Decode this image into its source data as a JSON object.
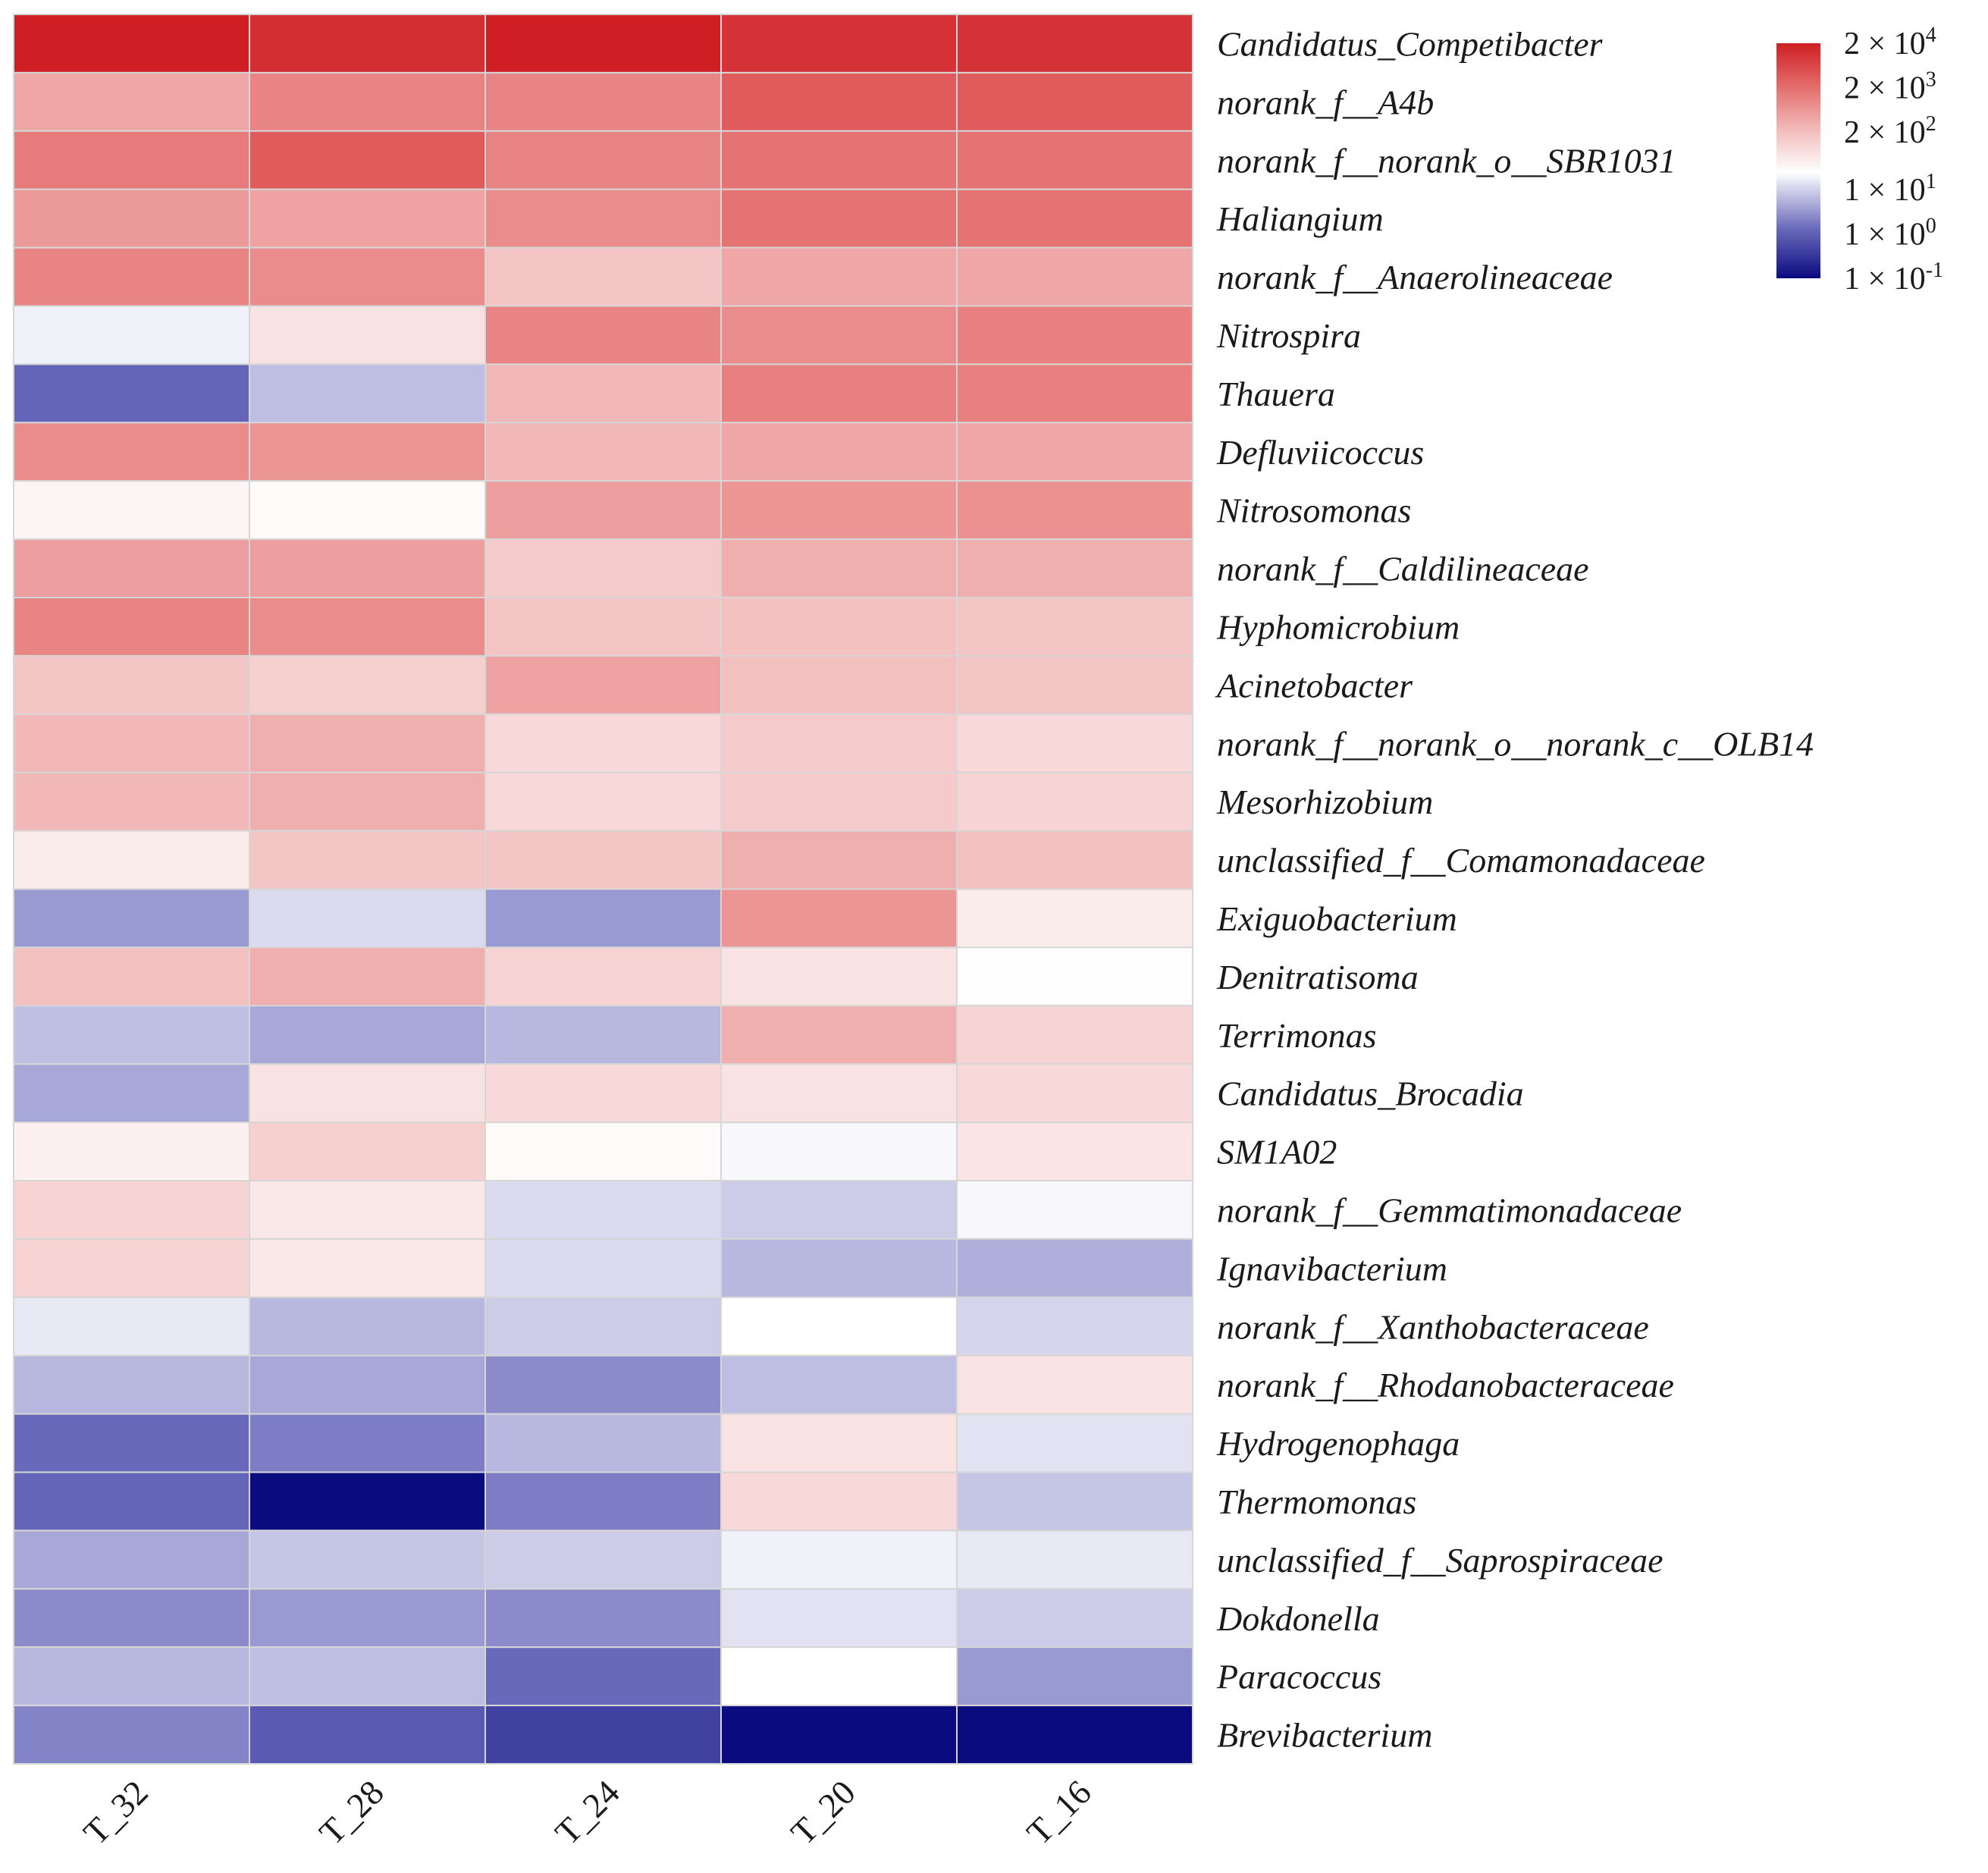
{
  "chart_data": {
    "type": "heatmap",
    "title": "",
    "xlabel": "",
    "ylabel": "",
    "columns": [
      "T_32",
      "T_28",
      "T_24",
      "T_20",
      "T_16"
    ],
    "rows": [
      "Candidatus_Competibacter",
      "norank_f__A4b",
      "norank_f__norank_o__SBR1031",
      "Haliangium",
      "norank_f__Anaerolineaceae",
      "Nitrospira",
      "Thauera",
      "Defluviicoccus",
      "Nitrosomonas",
      "norank_f__Caldilineaceae",
      "Hyphomicrobium",
      "Acinetobacter",
      "norank_f__norank_o__norank_c__OLB14",
      "Mesorhizobium",
      "unclassified_f__Comamonadaceae",
      "Exiguobacterium",
      "Denitratisoma",
      "Terrimonas",
      "Candidatus_Brocadia",
      "SM1A02",
      "norank_f__Gemmatimonadaceae",
      "Ignavibacterium",
      "norank_f__Xanthobacteraceae",
      "norank_f__Rhodanobacteraceae",
      "Hydrogenophaga",
      "Thermomonas",
      "unclassified_f__Saprospiraceae",
      "Dokdonella",
      "Paracoccus",
      "Brevibacterium"
    ],
    "log10_values": [
      [
        4.3,
        4.1,
        4.3,
        4.05,
        4.05
      ],
      [
        2.6,
        3.0,
        3.0,
        3.5,
        3.5
      ],
      [
        3.1,
        3.5,
        3.0,
        3.2,
        3.2
      ],
      [
        2.75,
        2.65,
        2.9,
        3.2,
        3.2
      ],
      [
        3.0,
        2.9,
        2.2,
        2.6,
        2.6
      ],
      [
        0.9,
        1.6,
        3.0,
        2.9,
        3.05
      ],
      [
        -0.1,
        0.55,
        2.4,
        3.05,
        3.05
      ],
      [
        2.9,
        2.8,
        2.4,
        2.6,
        2.6
      ],
      [
        1.2,
        1.1,
        2.7,
        2.8,
        2.85
      ],
      [
        2.7,
        2.7,
        2.1,
        2.5,
        2.5
      ],
      [
        3.0,
        2.9,
        2.2,
        2.3,
        2.2
      ],
      [
        2.2,
        2.0,
        2.65,
        2.3,
        2.2
      ],
      [
        2.4,
        2.5,
        1.8,
        2.1,
        1.8
      ],
      [
        2.4,
        2.5,
        1.8,
        2.1,
        1.9
      ],
      [
        1.4,
        2.2,
        2.2,
        2.5,
        2.3
      ],
      [
        0.3,
        0.75,
        0.3,
        2.8,
        1.4
      ],
      [
        2.3,
        2.5,
        1.9,
        1.6,
        1.05
      ],
      [
        0.55,
        0.4,
        0.5,
        2.5,
        1.9
      ],
      [
        0.4,
        1.6,
        1.8,
        1.6,
        1.8
      ],
      [
        1.3,
        2.0,
        1.1,
        0.95,
        1.55
      ],
      [
        1.9,
        1.5,
        0.75,
        0.65,
        0.95
      ],
      [
        1.9,
        1.5,
        0.75,
        0.5,
        0.45
      ],
      [
        0.85,
        0.5,
        0.65,
        1.0,
        0.7
      ],
      [
        0.5,
        0.4,
        0.2,
        0.55,
        1.6
      ],
      [
        -0.05,
        0.1,
        0.5,
        1.6,
        0.8
      ],
      [
        -0.1,
        -1.0,
        0.1,
        1.8,
        0.6
      ],
      [
        0.4,
        0.6,
        0.65,
        0.9,
        0.85
      ],
      [
        0.2,
        0.3,
        0.2,
        0.8,
        0.65
      ],
      [
        0.5,
        0.55,
        -0.05,
        1.0,
        0.3
      ],
      [
        0.15,
        -0.2,
        -0.45,
        -1.0,
        -1.0
      ]
    ],
    "color_scale": {
      "stops": [
        {
          "value": -1.0,
          "color": "#0b0b80"
        },
        {
          "value": 0.0,
          "color": "#6e6ebe"
        },
        {
          "value": 1.0,
          "color": "#ffffff"
        },
        {
          "value": 2.3,
          "color": "#f3c0c0"
        },
        {
          "value": 3.3,
          "color": "#e46a6a"
        },
        {
          "value": 4.3,
          "color": "#cf1f24"
        }
      ]
    },
    "legend": {
      "placement": "top-right",
      "ticks": [
        {
          "base": "2 × 10",
          "exp": "4",
          "value": 4.3
        },
        {
          "base": "2 × 10",
          "exp": "3",
          "value": 3.3
        },
        {
          "base": "2 × 10",
          "exp": "2",
          "value": 2.3
        },
        {
          "base": "1 × 10",
          "exp": "1",
          "value": 1.0
        },
        {
          "base": "1 × 10",
          "exp": "0",
          "value": 0.0
        },
        {
          "base": "1 × 10",
          "exp": "-1",
          "value": -1.0
        }
      ]
    }
  }
}
